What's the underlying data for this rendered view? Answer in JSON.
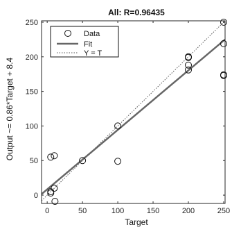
{
  "chart_data": {
    "type": "scatter",
    "title": "All: R=0.96435",
    "xlabel": "Target",
    "ylabel": "Output ~= 0.86*Target + 8.4",
    "xlim": [
      -8,
      252
    ],
    "ylim": [
      -12,
      252
    ],
    "xticks": [
      0,
      50,
      100,
      150,
      200,
      250
    ],
    "yticks": [
      0,
      50,
      100,
      150,
      200,
      250
    ],
    "xtick_labels": [
      "0",
      "50",
      "100",
      "150",
      "200",
      "250"
    ],
    "ytick_labels": [
      "0",
      "50",
      "100",
      "150",
      "200",
      "250"
    ],
    "grid": false,
    "legend_position": "top-left",
    "points": [
      {
        "x": 5,
        "y": 55
      },
      {
        "x": 5,
        "y": 5
      },
      {
        "x": 5,
        "y": 3
      },
      {
        "x": 10,
        "y": 57
      },
      {
        "x": 10,
        "y": 10
      },
      {
        "x": 11,
        "y": -9
      },
      {
        "x": 50,
        "y": 50
      },
      {
        "x": 100,
        "y": 100
      },
      {
        "x": 100,
        "y": 49
      },
      {
        "x": 200,
        "y": 200
      },
      {
        "x": 200,
        "y": 199
      },
      {
        "x": 200,
        "y": 188
      },
      {
        "x": 200,
        "y": 181
      },
      {
        "x": 250,
        "y": 250
      },
      {
        "x": 250,
        "y": 219
      },
      {
        "x": 250,
        "y": 174
      },
      {
        "x": 250,
        "y": 173
      }
    ],
    "fit": {
      "slope": 0.86,
      "intercept": 8.4
    },
    "identity": {
      "slope": 1,
      "intercept": 0
    },
    "legend": {
      "data_label": "Data",
      "fit_label": "Fit",
      "identity_label": "Y = T"
    },
    "colors": {
      "data_marker": "#111111",
      "fit_line": "#666666",
      "identity_line": "#555555",
      "axes": "#262626"
    }
  }
}
